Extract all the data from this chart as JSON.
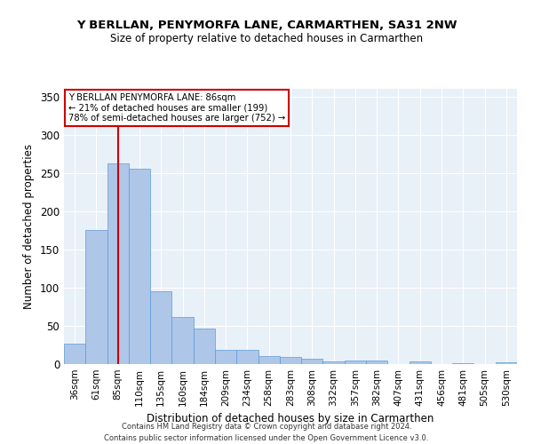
{
  "title": "Y BERLLAN, PENYMORFA LANE, CARMARTHEN, SA31 2NW",
  "subtitle": "Size of property relative to detached houses in Carmarthen",
  "xlabel": "Distribution of detached houses by size in Carmarthen",
  "ylabel": "Number of detached properties",
  "categories": [
    "36sqm",
    "61sqm",
    "85sqm",
    "110sqm",
    "135sqm",
    "160sqm",
    "184sqm",
    "209sqm",
    "234sqm",
    "258sqm",
    "283sqm",
    "308sqm",
    "332sqm",
    "357sqm",
    "382sqm",
    "407sqm",
    "431sqm",
    "456sqm",
    "481sqm",
    "505sqm",
    "530sqm"
  ],
  "values": [
    27,
    175,
    263,
    256,
    95,
    61,
    47,
    19,
    19,
    10,
    9,
    7,
    4,
    5,
    5,
    0,
    4,
    0,
    1,
    0,
    2
  ],
  "bar_color": "#aec6e8",
  "bar_edge_color": "#5b9bd5",
  "property_line_x": 2.0,
  "property_label": "Y BERLLAN PENYMORFA LANE: 86sqm",
  "annotation_line1": "← 21% of detached houses are smaller (199)",
  "annotation_line2": "78% of semi-detached houses are larger (752) →",
  "annotation_box_color": "#ffffff",
  "annotation_box_edge": "#cc0000",
  "property_line_color": "#cc0000",
  "ylim": [
    0,
    360
  ],
  "yticks": [
    0,
    50,
    100,
    150,
    200,
    250,
    300,
    350
  ],
  "background_color": "#e8f0f8",
  "grid_color": "#ffffff",
  "footer_line1": "Contains HM Land Registry data © Crown copyright and database right 2024.",
  "footer_line2": "Contains public sector information licensed under the Open Government Licence v3.0."
}
